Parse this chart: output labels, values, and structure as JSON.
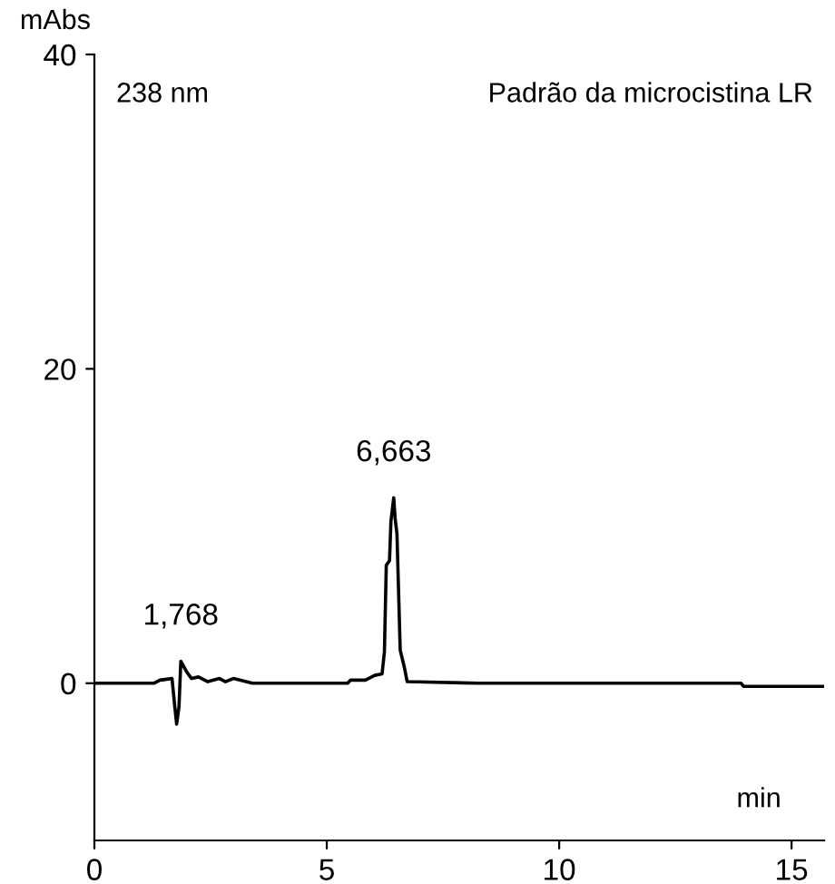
{
  "chart_data": {
    "type": "line",
    "xlabel": "min",
    "ylabel": "mAbs",
    "x": [
      0,
      1.28,
      1.41,
      1.67,
      1.73,
      1.77,
      1.82,
      1.86,
      1.99,
      2.09,
      2.24,
      2.44,
      2.69,
      2.82,
      2.99,
      3.4,
      5.45,
      5.51,
      5.83,
      6.03,
      6.19,
      6.24,
      6.28,
      6.35,
      6.38,
      6.44,
      6.47,
      6.51,
      6.58,
      6.67,
      6.73,
      8.27,
      13.91,
      13.97,
      15.7
    ],
    "series": [
      {
        "color": "#000000",
        "values": [
          0,
          0,
          0.2,
          0.3,
          -1.5,
          -2.6,
          -1.5,
          1.4,
          0.7,
          0.3,
          0.4,
          0.1,
          0.3,
          0.1,
          0.3,
          0,
          0,
          0.2,
          0.2,
          0.5,
          0.6,
          2.0,
          7.5,
          7.8,
          10.3,
          11.8,
          10.5,
          9.5,
          2.1,
          1.0,
          0.1,
          0,
          0,
          -0.2,
          -0.2
        ]
      }
    ],
    "xlim": [
      0,
      15.7
    ],
    "ylim": [
      -10,
      40
    ],
    "xticks": [
      0,
      5,
      10,
      15
    ],
    "yticks": [
      0,
      20,
      40
    ],
    "annotations": [
      "238 nm",
      "Padrão da microcistina LR",
      {
        "text": "1,768",
        "x": 1.86,
        "y": 1.4
      },
      {
        "text": "6,663",
        "x": 6.44,
        "y": 11.8
      }
    ],
    "grid": false,
    "legend": false,
    "marker": "none",
    "line_style": "solid"
  }
}
